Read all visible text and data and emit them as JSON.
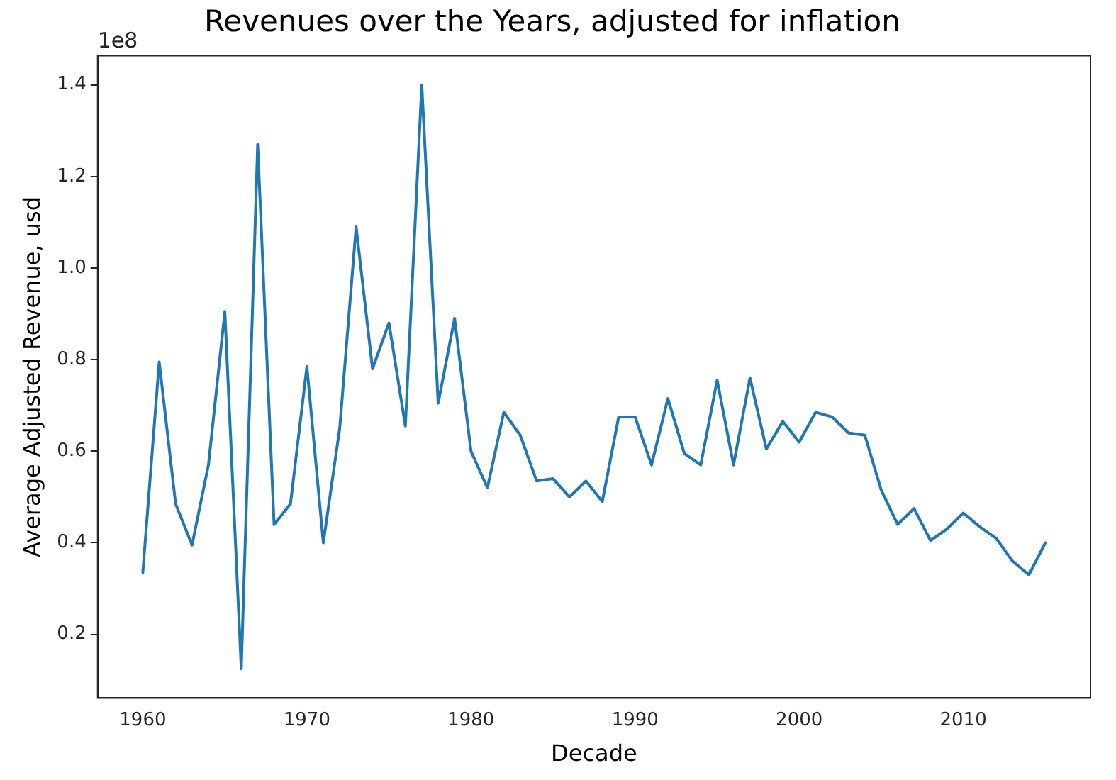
{
  "chart_data": {
    "type": "line",
    "title": "Revenues over the Years, adjusted for inflation",
    "xlabel": "Decade",
    "ylabel": "Average Adjusted Revenue, usd",
    "annotations": [
      "1e8"
    ],
    "x": [
      1960,
      1961,
      1962,
      1963,
      1964,
      1965,
      1966,
      1967,
      1968,
      1969,
      1970,
      1971,
      1972,
      1973,
      1974,
      1975,
      1976,
      1977,
      1978,
      1979,
      1980,
      1981,
      1982,
      1983,
      1984,
      1985,
      1986,
      1987,
      1988,
      1989,
      1990,
      1991,
      1992,
      1993,
      1994,
      1995,
      1996,
      1997,
      1998,
      1999,
      2000,
      2001,
      2002,
      2003,
      2004,
      2005,
      2006,
      2007,
      2008,
      2009,
      2010,
      2011,
      2012,
      2013,
      2014,
      2015
    ],
    "series": [
      {
        "color": "#1f77b4",
        "values": [
          0.335,
          0.795,
          0.485,
          0.395,
          0.57,
          0.905,
          0.125,
          1.27,
          0.44,
          0.485,
          0.785,
          0.4,
          0.65,
          1.09,
          0.78,
          0.88,
          0.655,
          1.4,
          0.705,
          0.89,
          0.6,
          0.52,
          0.685,
          0.635,
          0.535,
          0.54,
          0.5,
          0.535,
          0.49,
          0.675,
          0.675,
          0.57,
          0.715,
          0.595,
          0.57,
          0.755,
          0.57,
          0.76,
          0.605,
          0.665,
          0.62,
          0.685,
          0.675,
          0.64,
          0.635,
          0.515,
          0.44,
          0.475,
          0.405,
          0.43,
          0.465,
          0.435,
          0.41,
          0.36,
          0.33,
          0.4
        ]
      }
    ],
    "xlim": [
      1957.25,
      2017.75
    ],
    "xticks": [
      1960,
      1970,
      1980,
      1990,
      2000,
      2010
    ],
    "ylim": [
      0.061,
      1.464
    ],
    "yticks": [
      {
        "value": 0.2,
        "label": "0.2"
      },
      {
        "value": 0.4,
        "label": "0.4"
      },
      {
        "value": 0.6,
        "label": "0.6"
      },
      {
        "value": 0.8,
        "label": "0.8"
      },
      {
        "value": 1.0,
        "label": "1.0"
      },
      {
        "value": 1.2,
        "label": "1.2"
      },
      {
        "value": 1.4,
        "label": "1.4"
      }
    ],
    "grid": false,
    "legend": false,
    "marker": "none",
    "line_style": "solid"
  }
}
